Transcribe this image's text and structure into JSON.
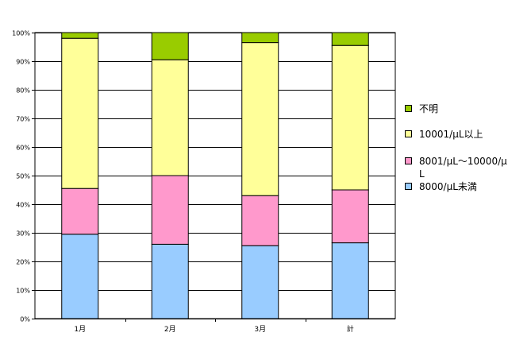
{
  "chart_data": {
    "type": "bar",
    "stacked": true,
    "categories": [
      "1月",
      "2月",
      "3月",
      "計"
    ],
    "series": [
      {
        "name": "8000/μL未満",
        "color": "#99ccff",
        "values": [
          29.5,
          26,
          25.5,
          26.5
        ]
      },
      {
        "name": "8001/μL～10000/μL",
        "color": "#ff99cc",
        "values": [
          16,
          24,
          17.5,
          18.5
        ]
      },
      {
        "name": "10001/μL以上",
        "color": "#ffff99",
        "values": [
          52.5,
          40.5,
          53.5,
          50.5
        ]
      },
      {
        "name": "不明",
        "color": "#99cc00",
        "values": [
          2,
          9.5,
          3.5,
          4.5
        ]
      }
    ],
    "ylim": [
      0,
      100
    ],
    "yticks": [
      "0%",
      "10%",
      "20%",
      "30%",
      "40%",
      "50%",
      "60%",
      "70%",
      "80%",
      "90%",
      "100%"
    ],
    "grid": true,
    "legend_position": "right"
  },
  "legend": [
    {
      "label": "不明",
      "color": "#99cc00"
    },
    {
      "label": "10001/μL以上",
      "color": "#ffff99"
    },
    {
      "label": "8001/μL～10000/μL",
      "color": "#ff99cc"
    },
    {
      "label": "8000/μL未満",
      "color": "#99ccff"
    }
  ]
}
